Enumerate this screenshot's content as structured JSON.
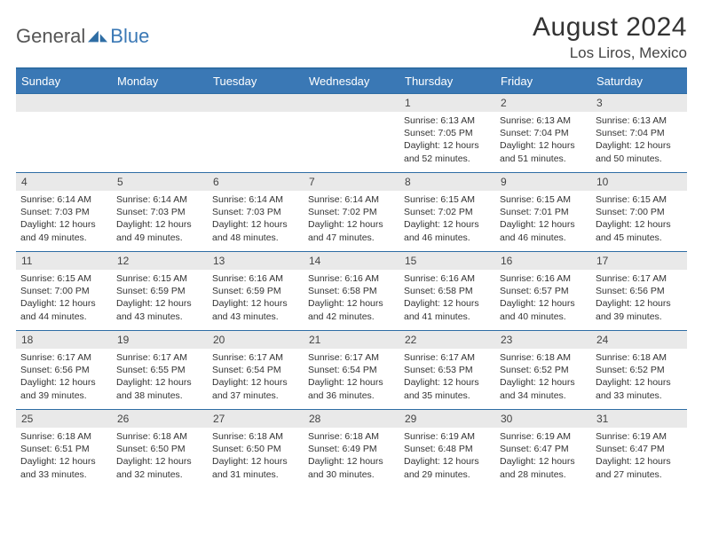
{
  "logo": {
    "part1": "General",
    "part2": "Blue"
  },
  "title": "August 2024",
  "location": "Los Liros, Mexico",
  "colors": {
    "header_bg": "#3a78b5",
    "border": "#2e6da4",
    "daynum_bg": "#e9e9e9",
    "text": "#333333"
  },
  "weekdays": [
    "Sunday",
    "Monday",
    "Tuesday",
    "Wednesday",
    "Thursday",
    "Friday",
    "Saturday"
  ],
  "weeks": [
    [
      null,
      null,
      null,
      null,
      {
        "n": "1",
        "sunrise": "Sunrise: 6:13 AM",
        "sunset": "Sunset: 7:05 PM",
        "d1": "Daylight: 12 hours",
        "d2": "and 52 minutes."
      },
      {
        "n": "2",
        "sunrise": "Sunrise: 6:13 AM",
        "sunset": "Sunset: 7:04 PM",
        "d1": "Daylight: 12 hours",
        "d2": "and 51 minutes."
      },
      {
        "n": "3",
        "sunrise": "Sunrise: 6:13 AM",
        "sunset": "Sunset: 7:04 PM",
        "d1": "Daylight: 12 hours",
        "d2": "and 50 minutes."
      }
    ],
    [
      {
        "n": "4",
        "sunrise": "Sunrise: 6:14 AM",
        "sunset": "Sunset: 7:03 PM",
        "d1": "Daylight: 12 hours",
        "d2": "and 49 minutes."
      },
      {
        "n": "5",
        "sunrise": "Sunrise: 6:14 AM",
        "sunset": "Sunset: 7:03 PM",
        "d1": "Daylight: 12 hours",
        "d2": "and 49 minutes."
      },
      {
        "n": "6",
        "sunrise": "Sunrise: 6:14 AM",
        "sunset": "Sunset: 7:03 PM",
        "d1": "Daylight: 12 hours",
        "d2": "and 48 minutes."
      },
      {
        "n": "7",
        "sunrise": "Sunrise: 6:14 AM",
        "sunset": "Sunset: 7:02 PM",
        "d1": "Daylight: 12 hours",
        "d2": "and 47 minutes."
      },
      {
        "n": "8",
        "sunrise": "Sunrise: 6:15 AM",
        "sunset": "Sunset: 7:02 PM",
        "d1": "Daylight: 12 hours",
        "d2": "and 46 minutes."
      },
      {
        "n": "9",
        "sunrise": "Sunrise: 6:15 AM",
        "sunset": "Sunset: 7:01 PM",
        "d1": "Daylight: 12 hours",
        "d2": "and 46 minutes."
      },
      {
        "n": "10",
        "sunrise": "Sunrise: 6:15 AM",
        "sunset": "Sunset: 7:00 PM",
        "d1": "Daylight: 12 hours",
        "d2": "and 45 minutes."
      }
    ],
    [
      {
        "n": "11",
        "sunrise": "Sunrise: 6:15 AM",
        "sunset": "Sunset: 7:00 PM",
        "d1": "Daylight: 12 hours",
        "d2": "and 44 minutes."
      },
      {
        "n": "12",
        "sunrise": "Sunrise: 6:15 AM",
        "sunset": "Sunset: 6:59 PM",
        "d1": "Daylight: 12 hours",
        "d2": "and 43 minutes."
      },
      {
        "n": "13",
        "sunrise": "Sunrise: 6:16 AM",
        "sunset": "Sunset: 6:59 PM",
        "d1": "Daylight: 12 hours",
        "d2": "and 43 minutes."
      },
      {
        "n": "14",
        "sunrise": "Sunrise: 6:16 AM",
        "sunset": "Sunset: 6:58 PM",
        "d1": "Daylight: 12 hours",
        "d2": "and 42 minutes."
      },
      {
        "n": "15",
        "sunrise": "Sunrise: 6:16 AM",
        "sunset": "Sunset: 6:58 PM",
        "d1": "Daylight: 12 hours",
        "d2": "and 41 minutes."
      },
      {
        "n": "16",
        "sunrise": "Sunrise: 6:16 AM",
        "sunset": "Sunset: 6:57 PM",
        "d1": "Daylight: 12 hours",
        "d2": "and 40 minutes."
      },
      {
        "n": "17",
        "sunrise": "Sunrise: 6:17 AM",
        "sunset": "Sunset: 6:56 PM",
        "d1": "Daylight: 12 hours",
        "d2": "and 39 minutes."
      }
    ],
    [
      {
        "n": "18",
        "sunrise": "Sunrise: 6:17 AM",
        "sunset": "Sunset: 6:56 PM",
        "d1": "Daylight: 12 hours",
        "d2": "and 39 minutes."
      },
      {
        "n": "19",
        "sunrise": "Sunrise: 6:17 AM",
        "sunset": "Sunset: 6:55 PM",
        "d1": "Daylight: 12 hours",
        "d2": "and 38 minutes."
      },
      {
        "n": "20",
        "sunrise": "Sunrise: 6:17 AM",
        "sunset": "Sunset: 6:54 PM",
        "d1": "Daylight: 12 hours",
        "d2": "and 37 minutes."
      },
      {
        "n": "21",
        "sunrise": "Sunrise: 6:17 AM",
        "sunset": "Sunset: 6:54 PM",
        "d1": "Daylight: 12 hours",
        "d2": "and 36 minutes."
      },
      {
        "n": "22",
        "sunrise": "Sunrise: 6:17 AM",
        "sunset": "Sunset: 6:53 PM",
        "d1": "Daylight: 12 hours",
        "d2": "and 35 minutes."
      },
      {
        "n": "23",
        "sunrise": "Sunrise: 6:18 AM",
        "sunset": "Sunset: 6:52 PM",
        "d1": "Daylight: 12 hours",
        "d2": "and 34 minutes."
      },
      {
        "n": "24",
        "sunrise": "Sunrise: 6:18 AM",
        "sunset": "Sunset: 6:52 PM",
        "d1": "Daylight: 12 hours",
        "d2": "and 33 minutes."
      }
    ],
    [
      {
        "n": "25",
        "sunrise": "Sunrise: 6:18 AM",
        "sunset": "Sunset: 6:51 PM",
        "d1": "Daylight: 12 hours",
        "d2": "and 33 minutes."
      },
      {
        "n": "26",
        "sunrise": "Sunrise: 6:18 AM",
        "sunset": "Sunset: 6:50 PM",
        "d1": "Daylight: 12 hours",
        "d2": "and 32 minutes."
      },
      {
        "n": "27",
        "sunrise": "Sunrise: 6:18 AM",
        "sunset": "Sunset: 6:50 PM",
        "d1": "Daylight: 12 hours",
        "d2": "and 31 minutes."
      },
      {
        "n": "28",
        "sunrise": "Sunrise: 6:18 AM",
        "sunset": "Sunset: 6:49 PM",
        "d1": "Daylight: 12 hours",
        "d2": "and 30 minutes."
      },
      {
        "n": "29",
        "sunrise": "Sunrise: 6:19 AM",
        "sunset": "Sunset: 6:48 PM",
        "d1": "Daylight: 12 hours",
        "d2": "and 29 minutes."
      },
      {
        "n": "30",
        "sunrise": "Sunrise: 6:19 AM",
        "sunset": "Sunset: 6:47 PM",
        "d1": "Daylight: 12 hours",
        "d2": "and 28 minutes."
      },
      {
        "n": "31",
        "sunrise": "Sunrise: 6:19 AM",
        "sunset": "Sunset: 6:47 PM",
        "d1": "Daylight: 12 hours",
        "d2": "and 27 minutes."
      }
    ]
  ]
}
